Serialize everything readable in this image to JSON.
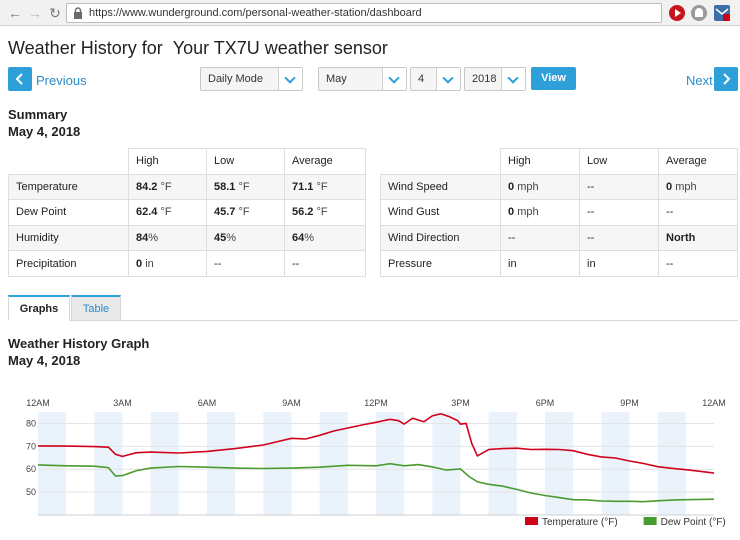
{
  "browser": {
    "url": "https://www.wunderground.com/personal-weather-station/dashboard"
  },
  "header": {
    "title_prefix": "Weather History for",
    "sensor_name": "Your TX7U weather sensor",
    "previous_label": "Previous",
    "next_label": "Next",
    "mode": "Daily Mode",
    "month": "May",
    "day": "4",
    "year": "2018",
    "view_label": "View"
  },
  "summary": {
    "title": "Summary",
    "date": "May 4, 2018",
    "left_table": {
      "columns": [
        "High",
        "Low",
        "Average"
      ],
      "rows": [
        {
          "label": "Temperature",
          "high": "84.2",
          "high_unit": "°F",
          "low": "58.1",
          "low_unit": "°F",
          "avg": "71.1",
          "avg_unit": "°F"
        },
        {
          "label": "Dew Point",
          "high": "62.4",
          "high_unit": "°F",
          "low": "45.7",
          "low_unit": "°F",
          "avg": "56.2",
          "avg_unit": "°F"
        },
        {
          "label": "Humidity",
          "high": "84",
          "high_unit": "%",
          "low": "45",
          "low_unit": "%",
          "avg": "64",
          "avg_unit": "%"
        },
        {
          "label": "Precipitation",
          "high": "0",
          "high_unit": "in",
          "low": "--",
          "low_unit": "",
          "avg": "--",
          "avg_unit": ""
        }
      ]
    },
    "right_table": {
      "columns": [
        "High",
        "Low",
        "Average"
      ],
      "rows": [
        {
          "label": "Wind Speed",
          "high": "0",
          "high_unit": "mph",
          "low": "--",
          "avg": "0",
          "avg_unit": "mph",
          "avg_bold": false
        },
        {
          "label": "Wind Gust",
          "high": "0",
          "high_unit": "mph",
          "low": "--",
          "avg": "--",
          "avg_unit": "",
          "avg_bold": false
        },
        {
          "label": "Wind Direction",
          "high": "--",
          "high_unit": "",
          "low": "--",
          "avg": "North",
          "avg_unit": "",
          "avg_bold": true
        },
        {
          "label": "Pressure",
          "high": "in",
          "high_unit": "",
          "low": "in",
          "avg": "--",
          "avg_unit": "",
          "avg_bold": false
        }
      ]
    }
  },
  "tabs": {
    "graphs": "Graphs",
    "table": "Table"
  },
  "graph": {
    "title": "Weather History Graph",
    "date": "May 4, 2018"
  },
  "chart_data": {
    "type": "line",
    "x_ticks": [
      "12AM",
      "3AM",
      "6AM",
      "9AM",
      "12PM",
      "3PM",
      "6PM",
      "9PM",
      "12AM"
    ],
    "xlim": [
      0,
      24
    ],
    "ylim": [
      40,
      85
    ],
    "y_ticks": [
      50,
      60,
      70,
      80
    ],
    "grid": "horizontal",
    "legend_position": "bottom-right",
    "series": [
      {
        "name": "Temperature (°F)",
        "color": "#d0021b",
        "points": [
          [
            0,
            70.2
          ],
          [
            1,
            70.1
          ],
          [
            2,
            69.9
          ],
          [
            2.5,
            69.6
          ],
          [
            2.75,
            66.5
          ],
          [
            3,
            65.6
          ],
          [
            3.5,
            67.2
          ],
          [
            4,
            67.5
          ],
          [
            5,
            67.1
          ],
          [
            6,
            67.8
          ],
          [
            7,
            69.0
          ],
          [
            8,
            70.6
          ],
          [
            9,
            73.5
          ],
          [
            9.5,
            73.2
          ],
          [
            10,
            74.8
          ],
          [
            10.5,
            76.7
          ],
          [
            11,
            78.0
          ],
          [
            11.5,
            79.3
          ],
          [
            12,
            80.5
          ],
          [
            12.5,
            81.8
          ],
          [
            12.8,
            81.2
          ],
          [
            13,
            79.7
          ],
          [
            13.3,
            82.3
          ],
          [
            13.7,
            80.7
          ],
          [
            14,
            83.3
          ],
          [
            14.3,
            84.2
          ],
          [
            14.6,
            83.0
          ],
          [
            14.9,
            81.2
          ],
          [
            15,
            79.7
          ],
          [
            15.2,
            80.0
          ],
          [
            15.4,
            71.2
          ],
          [
            15.6,
            65.8
          ],
          [
            16,
            68.6
          ],
          [
            16.5,
            69.0
          ],
          [
            17,
            69.2
          ],
          [
            17.5,
            68.6
          ],
          [
            18,
            68.7
          ],
          [
            18.5,
            68.6
          ],
          [
            19,
            68.1
          ],
          [
            19.5,
            66.5
          ],
          [
            20,
            65.4
          ],
          [
            20.5,
            64.9
          ],
          [
            21,
            63.6
          ],
          [
            21.5,
            62.5
          ],
          [
            22,
            61.1
          ],
          [
            22.5,
            60.4
          ],
          [
            23,
            59.8
          ],
          [
            23.5,
            59.1
          ],
          [
            24,
            58.3
          ]
        ]
      },
      {
        "name": "Dew Point (°F)",
        "color": "#4a9b2f",
        "points": [
          [
            0,
            61.9
          ],
          [
            1,
            61.5
          ],
          [
            2,
            61.3
          ],
          [
            2.5,
            60.7
          ],
          [
            2.75,
            57.0
          ],
          [
            3,
            57.2
          ],
          [
            3.5,
            59.4
          ],
          [
            4,
            60.5
          ],
          [
            5,
            61.2
          ],
          [
            6,
            60.9
          ],
          [
            7,
            60.5
          ],
          [
            8,
            60.3
          ],
          [
            9,
            60.5
          ],
          [
            10,
            60.9
          ],
          [
            11,
            61.7
          ],
          [
            12,
            61.5
          ],
          [
            12.5,
            62.4
          ],
          [
            13,
            61.5
          ],
          [
            13.5,
            62.0
          ],
          [
            14,
            61.0
          ],
          [
            14.5,
            59.6
          ],
          [
            15,
            60.1
          ],
          [
            15.3,
            56.8
          ],
          [
            15.6,
            54.5
          ],
          [
            16,
            53.4
          ],
          [
            16.5,
            52.6
          ],
          [
            17,
            51.2
          ],
          [
            17.5,
            49.6
          ],
          [
            18,
            48.5
          ],
          [
            18.5,
            47.6
          ],
          [
            19,
            46.7
          ],
          [
            19.5,
            46.6
          ],
          [
            20,
            46.1
          ],
          [
            20.5,
            46.0
          ],
          [
            21,
            46.0
          ],
          [
            21.5,
            45.8
          ],
          [
            22,
            46.2
          ],
          [
            22.5,
            46.5
          ],
          [
            23,
            46.7
          ],
          [
            23.5,
            46.8
          ],
          [
            24,
            46.9
          ]
        ]
      }
    ]
  }
}
